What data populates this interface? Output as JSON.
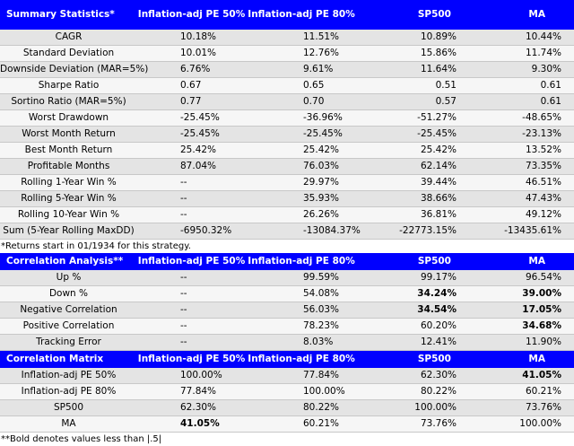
{
  "summary": {
    "header": [
      "Summary Statistics*",
      "Inflation-adj PE 50%",
      "Inflation-adj PE 80%",
      "SP500",
      "MA"
    ],
    "rows": [
      [
        "CAGR",
        "10.18%",
        "11.51%",
        "10.89%",
        "10.44%"
      ],
      [
        "Standard Deviation",
        "10.01%",
        "12.76%",
        "15.86%",
        "11.74%"
      ],
      [
        "Downside Deviation (MAR=5%)",
        "6.76%",
        "9.61%",
        "11.64%",
        "9.30%"
      ],
      [
        "Sharpe Ratio",
        "0.67",
        "0.65",
        "0.51",
        "0.61"
      ],
      [
        "Sortino Ratio (MAR=5%)",
        "0.77",
        "0.70",
        "0.57",
        "0.61"
      ],
      [
        "Worst Drawdown",
        "-25.45%",
        "-36.96%",
        "-51.27%",
        "-48.65%"
      ],
      [
        "Worst Month Return",
        "-25.45%",
        "-25.45%",
        "-25.45%",
        "-23.13%"
      ],
      [
        "Best Month Return",
        "25.42%",
        "25.42%",
        "25.42%",
        "13.52%"
      ],
      [
        "Profitable Months",
        "87.04%",
        "76.03%",
        "62.14%",
        "73.35%"
      ],
      [
        "Rolling 1-Year Win %",
        "--",
        "29.97%",
        "39.44%",
        "46.51%"
      ],
      [
        "Rolling 5-Year Win %",
        "--",
        "35.93%",
        "38.66%",
        "47.43%"
      ],
      [
        "Rolling 10-Year Win %",
        "--",
        "26.26%",
        "36.81%",
        "49.12%"
      ],
      [
        "Sum (5-Year Rolling MaxDD)",
        "-6950.32%",
        "-13084.37%",
        "-22773.15%",
        "-13435.61%"
      ]
    ],
    "note": "*Returns start in 01/1934 for this strategy."
  },
  "correlation_analysis": {
    "header": [
      "Correlation Analysis**",
      "Inflation-adj PE 50%",
      "Inflation-adj PE 80%",
      "SP500",
      "MA"
    ],
    "rows": [
      [
        "Up %",
        "--",
        "99.59%",
        "99.17%",
        "96.54%"
      ],
      [
        "Down %",
        "--",
        "54.08%",
        "34.24%",
        "39.00%"
      ],
      [
        "Negative Correlation",
        "--",
        "56.03%",
        "34.54%",
        "17.05%"
      ],
      [
        "Positive Correlation",
        "--",
        "78.23%",
        "60.20%",
        "34.68%"
      ],
      [
        "Tracking Error",
        "--",
        "8.03%",
        "12.41%",
        "11.90%"
      ]
    ]
  },
  "correlation_matrix": {
    "header": [
      "Correlation Matrix",
      "Inflation-adj PE 50%",
      "Inflation-adj PE 80%",
      "SP500",
      "MA"
    ],
    "rows": [
      [
        "Inflation-adj PE 50%",
        "100.00%",
        "77.84%",
        "62.30%",
        "41.05%"
      ],
      [
        "Inflation-adj PE 80%",
        "77.84%",
        "100.00%",
        "80.22%",
        "60.21%"
      ],
      [
        "SP500",
        "62.30%",
        "80.22%",
        "100.00%",
        "73.76%"
      ],
      [
        "MA",
        "41.05%",
        "60.21%",
        "73.76%",
        "100.00%"
      ]
    ],
    "note": "**Bold denotes values less than |.5|"
  },
  "colors": {
    "header_bg": "#0000ff",
    "header_text": "#ffffff",
    "row_odd": "#e4e4e4",
    "row_even": "#f6f6f6"
  }
}
